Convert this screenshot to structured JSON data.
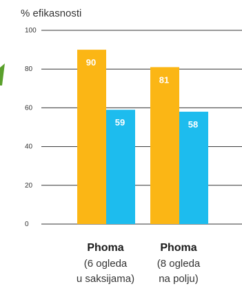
{
  "chart_data": {
    "type": "bar",
    "ylabel": "% efikasnosti",
    "ylim": [
      0,
      100
    ],
    "yticks": [
      0,
      20,
      40,
      60,
      80,
      100
    ],
    "grid": true,
    "categories": [
      {
        "bold": "Phoma",
        "line1": "(6 ogleda",
        "line2": "u saksijama)"
      },
      {
        "bold": "Phoma",
        "line1": "(8 ogleda",
        "line2": "na polju)"
      }
    ],
    "series": [
      {
        "values": [
          90,
          81
        ],
        "color": "#FBB615"
      },
      {
        "values": [
          59,
          58
        ],
        "color": "#1DBCEE"
      }
    ]
  },
  "decoration": {
    "accent_color": "#5AA02C"
  }
}
